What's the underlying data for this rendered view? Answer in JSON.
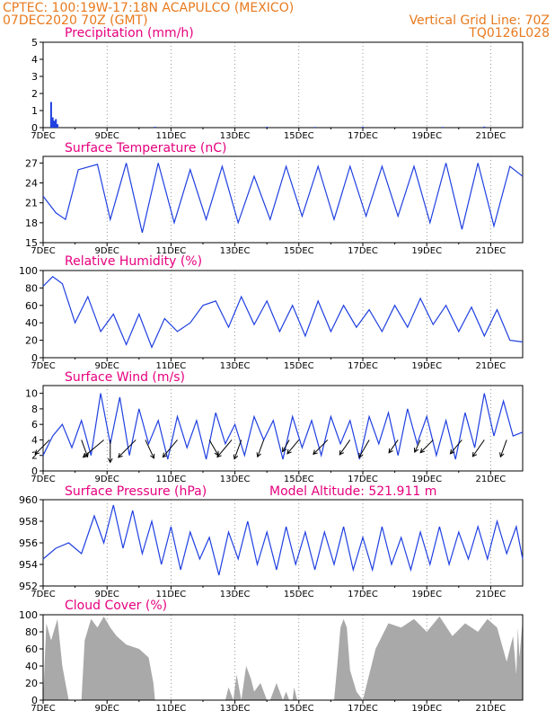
{
  "header": {
    "line1_left": "CPTEC:   100:19W-17:18N   ACAPULCO (MEXICO)",
    "line2_left": "07DEC2020 70Z (GMT)",
    "line2_right": "Vertical Grid Line: 70Z",
    "line3_right": "TQ0126L028",
    "model_altitude": "Model Altitude: 521.911 m"
  },
  "colors": {
    "header_text": "#e87a1e",
    "panel_title": "#e6007e",
    "series_line": "#1f3fe0",
    "cloud_fill": "#a9a9a9",
    "grid": "#000000"
  },
  "x_axis": {
    "tick_labels": [
      "7DEC",
      "9DEC",
      "11DEC",
      "13DEC",
      "15DEC",
      "17DEC",
      "19DEC",
      "21DEC"
    ],
    "tick_days": [
      0,
      2,
      4,
      6,
      8,
      10,
      12,
      14
    ],
    "start_day": 0,
    "end_day": 15.0
  },
  "chart_data": [
    {
      "type": "bar",
      "title": "Precipitation (mm/h)",
      "ylim": [
        0,
        5
      ],
      "yticks": [
        0,
        1,
        2,
        3,
        4,
        5
      ],
      "x": [
        0.25,
        0.3,
        0.35,
        0.4,
        0.45,
        3.5,
        7.0,
        8.5,
        10.0,
        12.5,
        13.8
      ],
      "values": [
        1.5,
        0.6,
        0.4,
        0.5,
        0.2,
        0.05,
        0.05,
        0.04,
        0.05,
        0.04,
        0.06
      ]
    },
    {
      "type": "line",
      "title": "Surface Temperature (nC)",
      "ylim": [
        15,
        28
      ],
      "yticks": [
        15,
        18,
        21,
        24,
        27
      ],
      "x": [
        0.0,
        0.4,
        0.7,
        1.1,
        1.7,
        2.1,
        2.6,
        3.1,
        3.6,
        4.1,
        4.6,
        5.1,
        5.6,
        6.1,
        6.6,
        7.1,
        7.6,
        8.1,
        8.6,
        9.1,
        9.6,
        10.1,
        10.6,
        11.1,
        11.6,
        12.1,
        12.6,
        13.1,
        13.6,
        14.1,
        14.6,
        15.0
      ],
      "values": [
        22.0,
        19.5,
        18.5,
        26.0,
        26.8,
        18.5,
        27.0,
        16.5,
        27.0,
        18.0,
        26.0,
        18.5,
        26.5,
        18.0,
        25.0,
        18.5,
        26.5,
        19.0,
        26.5,
        18.5,
        26.5,
        19.0,
        26.5,
        19.0,
        26.5,
        18.0,
        27.0,
        17.0,
        27.0,
        17.5,
        26.5,
        25.0
      ]
    },
    {
      "type": "line",
      "title": "Relative Humidity (%)",
      "ylim": [
        0,
        100
      ],
      "yticks": [
        0,
        20,
        40,
        60,
        80,
        100
      ],
      "x": [
        0.0,
        0.3,
        0.6,
        1.0,
        1.4,
        1.8,
        2.2,
        2.6,
        3.0,
        3.4,
        3.8,
        4.2,
        4.6,
        5.0,
        5.4,
        5.8,
        6.2,
        6.6,
        7.0,
        7.4,
        7.8,
        8.2,
        8.6,
        9.0,
        9.4,
        9.8,
        10.2,
        10.6,
        11.0,
        11.4,
        11.8,
        12.2,
        12.6,
        13.0,
        13.4,
        13.8,
        14.2,
        14.6,
        15.0
      ],
      "values": [
        82,
        93,
        85,
        40,
        70,
        30,
        50,
        15,
        50,
        12,
        45,
        30,
        40,
        60,
        65,
        35,
        70,
        38,
        65,
        30,
        60,
        25,
        65,
        30,
        60,
        35,
        55,
        30,
        60,
        35,
        68,
        38,
        60,
        30,
        58,
        25,
        55,
        20,
        18
      ]
    },
    {
      "type": "line",
      "title": "Surface Wind (m/s)",
      "ylim": [
        0,
        11
      ],
      "yticks": [
        0,
        2,
        4,
        6,
        8,
        10
      ],
      "x": [
        0.0,
        0.3,
        0.6,
        0.9,
        1.2,
        1.5,
        1.8,
        2.1,
        2.4,
        2.7,
        3.0,
        3.3,
        3.6,
        3.9,
        4.2,
        4.5,
        4.8,
        5.1,
        5.4,
        5.7,
        6.0,
        6.3,
        6.6,
        6.9,
        7.2,
        7.5,
        7.8,
        8.1,
        8.4,
        8.7,
        9.0,
        9.3,
        9.6,
        9.9,
        10.2,
        10.5,
        10.8,
        11.1,
        11.4,
        11.7,
        12.0,
        12.3,
        12.6,
        12.9,
        13.2,
        13.5,
        13.8,
        14.1,
        14.4,
        14.7,
        15.0
      ],
      "values": [
        2.0,
        4.5,
        6.0,
        3.0,
        6.5,
        2.0,
        10.0,
        3.5,
        9.5,
        2.0,
        8.0,
        3.5,
        6.5,
        1.5,
        7.0,
        3.0,
        6.5,
        1.5,
        7.5,
        3.5,
        6.0,
        2.0,
        7.0,
        4.0,
        6.5,
        1.5,
        7.0,
        3.0,
        6.5,
        2.0,
        7.0,
        3.5,
        6.5,
        1.5,
        7.0,
        3.5,
        7.5,
        2.0,
        8.0,
        3.5,
        7.0,
        2.0,
        6.5,
        1.5,
        7.5,
        3.0,
        10.0,
        4.5,
        9.0,
        4.5,
        5.0
      ],
      "arrows": [
        {
          "x": 0.2,
          "speed": 4.5,
          "dir_deg": 225
        },
        {
          "x": 1.2,
          "speed": 4.0,
          "dir_deg": 160
        },
        {
          "x": 1.9,
          "speed": 6.0,
          "dir_deg": 230
        },
        {
          "x": 2.1,
          "speed": 5.0,
          "dir_deg": 180
        },
        {
          "x": 2.9,
          "speed": 5.5,
          "dir_deg": 225
        },
        {
          "x": 3.2,
          "speed": 4.5,
          "dir_deg": 155
        },
        {
          "x": 4.2,
          "speed": 5.0,
          "dir_deg": 220
        },
        {
          "x": 5.2,
          "speed": 4.0,
          "dir_deg": 150
        },
        {
          "x": 5.9,
          "speed": 5.0,
          "dir_deg": 220
        },
        {
          "x": 6.2,
          "speed": 4.5,
          "dir_deg": 200
        },
        {
          "x": 6.9,
          "speed": 4.0,
          "dir_deg": 200
        },
        {
          "x": 7.7,
          "speed": 3.0,
          "dir_deg": 210
        },
        {
          "x": 8.0,
          "speed": 4.0,
          "dir_deg": 220
        },
        {
          "x": 8.9,
          "speed": 4.5,
          "dir_deg": 225
        },
        {
          "x": 9.6,
          "speed": 4.0,
          "dir_deg": 215
        },
        {
          "x": 10.2,
          "speed": 4.5,
          "dir_deg": 210
        },
        {
          "x": 11.1,
          "speed": 3.5,
          "dir_deg": 215
        },
        {
          "x": 11.8,
          "speed": 3.0,
          "dir_deg": 205
        },
        {
          "x": 12.2,
          "speed": 4.0,
          "dir_deg": 225
        },
        {
          "x": 13.1,
          "speed": 4.0,
          "dir_deg": 220
        },
        {
          "x": 13.8,
          "speed": 4.5,
          "dir_deg": 215
        },
        {
          "x": 14.5,
          "speed": 4.0,
          "dir_deg": 200
        }
      ]
    },
    {
      "type": "line",
      "title": "Surface Pressure (hPa)",
      "ylim": [
        952,
        960
      ],
      "yticks": [
        952,
        954,
        956,
        958,
        960
      ],
      "x": [
        0.0,
        0.4,
        0.8,
        1.2,
        1.6,
        1.9,
        2.2,
        2.5,
        2.8,
        3.1,
        3.4,
        3.7,
        4.0,
        4.3,
        4.6,
        4.9,
        5.2,
        5.5,
        5.8,
        6.1,
        6.4,
        6.7,
        7.0,
        7.3,
        7.6,
        7.9,
        8.2,
        8.5,
        8.8,
        9.1,
        9.4,
        9.7,
        10.0,
        10.3,
        10.6,
        10.9,
        11.2,
        11.5,
        11.8,
        12.1,
        12.4,
        12.7,
        13.0,
        13.3,
        13.6,
        13.9,
        14.2,
        14.5,
        14.8,
        15.0
      ],
      "values": [
        954.5,
        955.5,
        956.0,
        955.0,
        958.5,
        956.0,
        959.5,
        955.5,
        959.0,
        955.0,
        958.0,
        954.0,
        957.5,
        953.5,
        957.0,
        954.5,
        956.5,
        953.0,
        957.0,
        954.5,
        958.0,
        954.0,
        957.0,
        953.5,
        957.5,
        954.0,
        957.0,
        953.5,
        957.0,
        954.0,
        957.5,
        953.5,
        956.5,
        953.5,
        957.5,
        954.0,
        956.5,
        953.5,
        957.0,
        954.0,
        957.5,
        954.0,
        957.0,
        954.5,
        957.5,
        954.5,
        958.0,
        955.0,
        957.5,
        954.5
      ]
    },
    {
      "type": "area",
      "title": "Cloud Cover (%)",
      "ylim": [
        0,
        100
      ],
      "yticks": [
        0,
        20,
        40,
        60,
        80,
        100
      ],
      "x": [
        0.0,
        0.1,
        0.25,
        0.45,
        0.6,
        0.7,
        0.8,
        1.0,
        1.2,
        1.3,
        1.5,
        1.7,
        1.9,
        2.1,
        2.3,
        2.6,
        3.0,
        3.3,
        3.45,
        3.5,
        5.7,
        5.8,
        5.95,
        6.05,
        6.2,
        6.35,
        6.5,
        6.6,
        6.8,
        7.0,
        7.1,
        7.3,
        7.5,
        7.6,
        7.7,
        7.8,
        7.85,
        7.95,
        8.2,
        8.6,
        8.9,
        9.1,
        9.2,
        9.3,
        9.4,
        9.5,
        9.6,
        9.8,
        10.0,
        10.4,
        10.8,
        11.2,
        11.6,
        12.0,
        12.4,
        12.8,
        13.2,
        13.6,
        13.9,
        14.2,
        14.5,
        14.7,
        14.8,
        14.85,
        14.9,
        15.0
      ],
      "values": [
        0,
        90,
        70,
        95,
        40,
        20,
        0,
        0,
        0,
        70,
        95,
        85,
        98,
        85,
        75,
        65,
        60,
        50,
        20,
        0,
        0,
        15,
        0,
        30,
        0,
        40,
        25,
        10,
        20,
        0,
        0,
        20,
        0,
        10,
        0,
        0,
        15,
        0,
        0,
        0,
        0,
        0,
        40,
        85,
        95,
        85,
        35,
        10,
        0,
        60,
        90,
        85,
        95,
        80,
        98,
        75,
        90,
        80,
        95,
        85,
        45,
        75,
        30,
        85,
        50,
        95
      ]
    }
  ]
}
